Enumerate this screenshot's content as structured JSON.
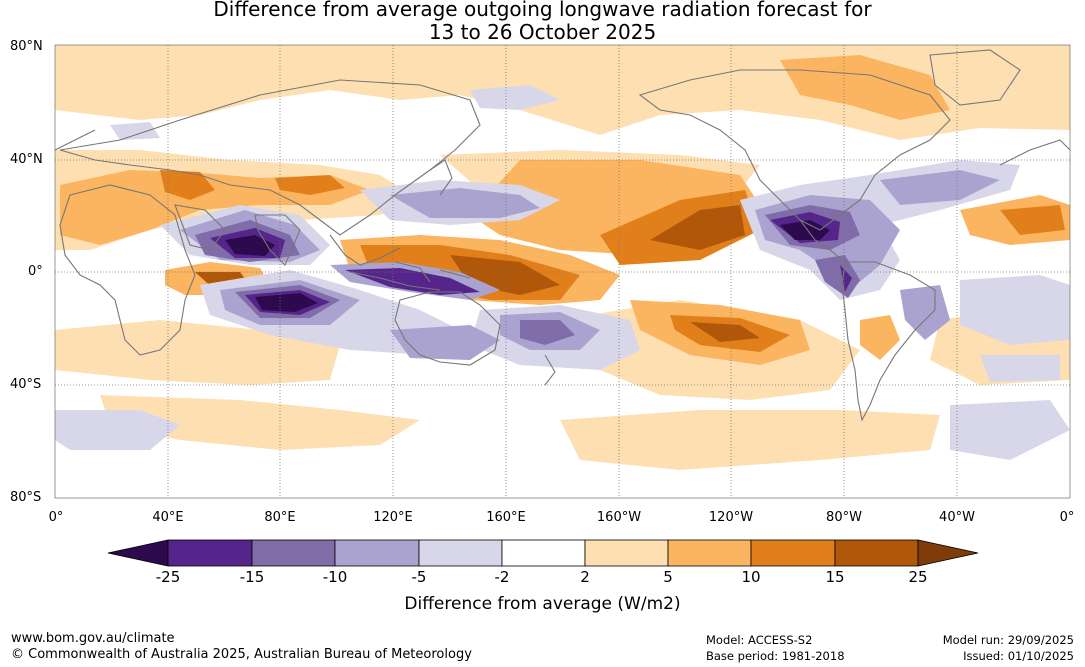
{
  "title": {
    "line1": "Difference from average outgoing longwave radiation forecast for",
    "line2": "13 to 26 October 2025"
  },
  "map": {
    "latitude_labels": [
      "80°N",
      "40°N",
      "0°",
      "40°S",
      "80°S"
    ],
    "longitude_labels": [
      "0°",
      "40°E",
      "80°E",
      "120°E",
      "160°E",
      "160°W",
      "120°W",
      "80°W",
      "40°W",
      "0°"
    ],
    "icons": [
      "coastline-outline",
      "graticule-grid"
    ]
  },
  "colorbar": {
    "tick_labels": [
      "-25",
      "-15",
      "-10",
      "-5",
      "-2",
      "2",
      "5",
      "10",
      "15",
      "25"
    ],
    "colors": [
      "#2d0a4e",
      "#55258c",
      "#7f6ca8",
      "#aba3cf",
      "#d8d7ea",
      "#ffffff",
      "#fedfb2",
      "#fbb45f",
      "#e1801a",
      "#b15709",
      "#7f3b08"
    ],
    "label": "Difference from average (W/m2)"
  },
  "footer": {
    "website": "www.bom.gov.au/climate",
    "copyright": "© Commonwealth of Australia 2025, Australian Bureau of Meteorology",
    "model": "Model: ACCESS-S2",
    "base_period": "Base period: 1981-2018",
    "model_run": "Model run: 29/09/2025",
    "issued": "Issued: 01/10/2025"
  }
}
